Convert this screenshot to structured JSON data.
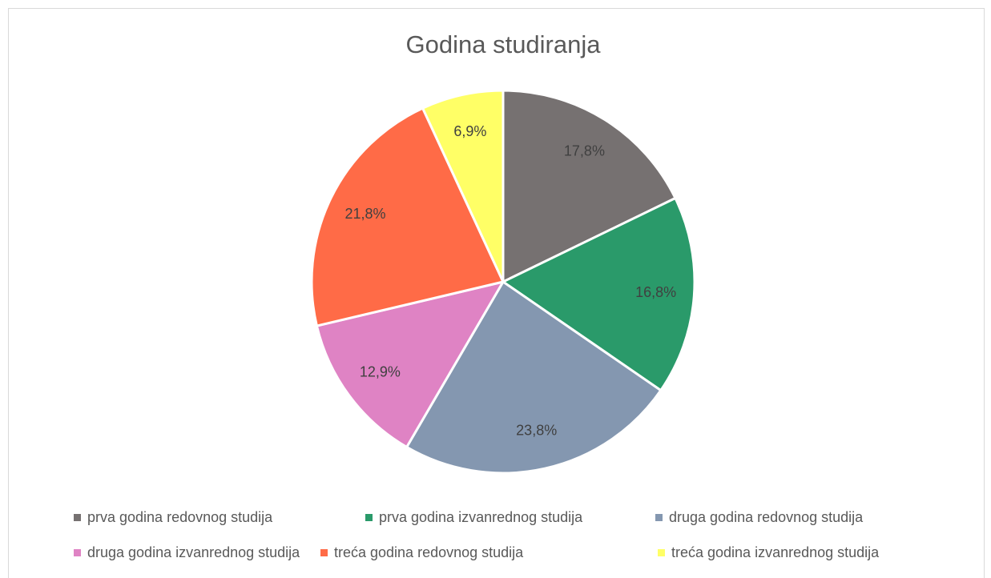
{
  "chart_data": {
    "type": "pie",
    "title": "Godina studiranja",
    "categories": [
      "prva godina redovnog studija",
      "prva godina izvanrednog studija",
      "druga godina redovnog studija",
      "druga godina izvanrednog studija",
      "treća godina redovnog studija",
      "treća godina izvanrednog studija"
    ],
    "values": [
      17.8,
      16.8,
      23.8,
      12.9,
      21.8,
      6.9
    ],
    "value_labels": [
      "17,8%",
      "16,8%",
      "23,8%",
      "12,9%",
      "21,8%",
      "6,9%"
    ],
    "colors": [
      "#767171",
      "#2a9a6a",
      "#8497b0",
      "#df83c4",
      "#ff6b47",
      "#ffff66"
    ],
    "legend": "bottom"
  }
}
